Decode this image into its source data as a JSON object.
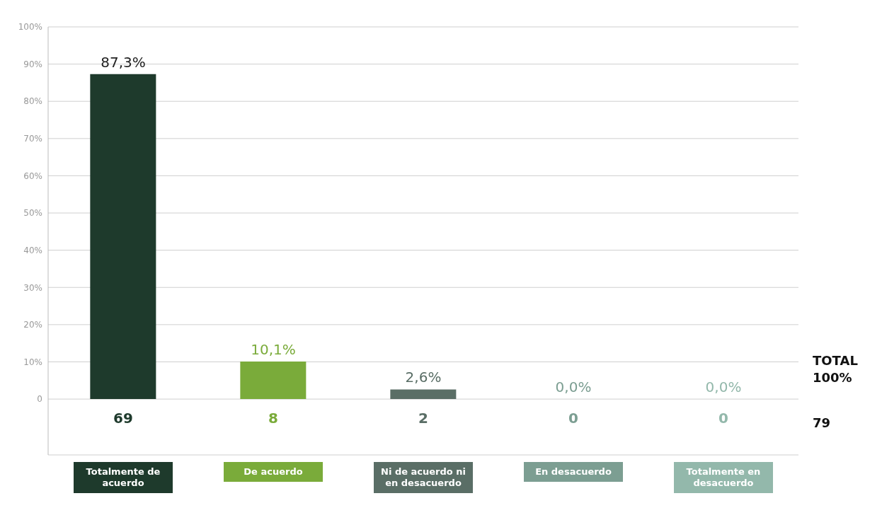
{
  "chart_data": {
    "type": "bar",
    "categories": [
      "Totalmente de acuerdo",
      "De acuerdo",
      "Ni de acuerdo ni en desacuerdo",
      "En desacuerdo",
      "Totalmente en desacuerdo"
    ],
    "values": [
      87.3,
      10.1,
      2.6,
      0.0,
      0.0
    ],
    "colors": [
      "#1e3a2c",
      "#7aab3a",
      "#5a6e66",
      "#7c9e92",
      "#93b8ab"
    ],
    "value_labels": [
      "87,3%",
      "10,1%",
      "2,6%",
      "0,0%",
      "0,0%"
    ],
    "ylim": [
      -15,
      100
    ],
    "yticks": [
      0,
      {
        "value": 10,
        "label": "10%"
      },
      {
        "value": 20,
        "label": "20%"
      },
      {
        "value": 30,
        "label": "30%"
      },
      {
        "value": 40,
        "label": "40%"
      },
      {
        "value": 50,
        "label": "50%"
      },
      {
        "value": 60,
        "label": "60%"
      },
      {
        "value": 70,
        "label": "70%"
      },
      {
        "value": 80,
        "label": "80%"
      },
      {
        "value": 90,
        "label": "90%"
      },
      {
        "value": 100,
        "label": "100%"
      }
    ],
    "grid": "y",
    "legend": false,
    "annotations": [
      "69",
      "8",
      "2",
      "0",
      "0",
      "TOTAL 100%",
      "79"
    ]
  }
}
